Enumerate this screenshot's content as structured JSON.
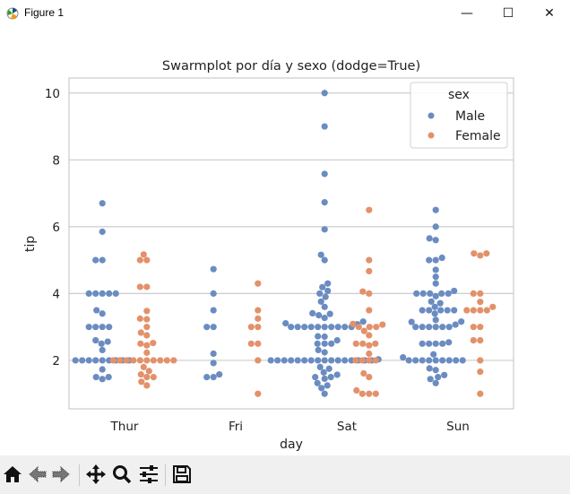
{
  "window": {
    "title": "Figure 1",
    "minimize": "—",
    "maximize": "☐",
    "close": "✕"
  },
  "toolbar": {
    "icons": [
      "home-icon",
      "back-icon",
      "forward-icon",
      "pan-icon",
      "zoom-icon",
      "configure-subplots-icon",
      "save-icon"
    ]
  },
  "chart_data": {
    "type": "scatter",
    "subtype": "swarm",
    "title": "Swarmplot por día y sexo (dodge=True)",
    "xlabel": "day",
    "ylabel": "tip",
    "categories": [
      "Thur",
      "Fri",
      "Sat",
      "Sun"
    ],
    "y_ticks": [
      2,
      4,
      6,
      8,
      10
    ],
    "ylim": [
      0.55,
      10.45
    ],
    "grid": "horizontal",
    "legend": {
      "title": "sex",
      "placement": "top-right"
    },
    "series": [
      {
        "name": "Male",
        "color": "#4c72b0",
        "values": {
          "Thur": [
            1.44,
            1.5,
            1.5,
            1.73,
            2,
            2,
            2,
            2,
            2,
            2,
            2,
            2,
            2,
            2.31,
            2.5,
            2.56,
            2.6,
            3,
            3,
            3,
            3,
            3.4,
            3.5,
            4,
            4,
            4,
            4,
            4,
            5,
            5,
            5.85,
            6.7
          ],
          "Fri": [
            1.5,
            1.5,
            1.58,
            1.92,
            2.2,
            3,
            3,
            3.5,
            4,
            4.73
          ],
          "Sat": [
            1,
            1.17,
            1.25,
            1.32,
            1.45,
            1.5,
            1.5,
            1.57,
            1.64,
            1.75,
            1.8,
            2,
            2,
            2,
            2,
            2,
            2,
            2,
            2,
            2,
            2,
            2,
            2,
            2,
            2,
            2,
            2,
            2.03,
            2.24,
            2.31,
            2.5,
            2.5,
            2.5,
            2.6,
            2.71,
            2.72,
            3,
            3,
            3,
            3,
            3,
            3,
            3,
            3,
            3,
            3,
            3.08,
            3.11,
            3.16,
            3.27,
            3.35,
            3.39,
            3.41,
            3.6,
            3.76,
            3.9,
            4,
            4.08,
            4.19,
            4.3,
            5,
            5.16,
            5.92,
            6.73,
            7.58,
            9,
            10
          ],
          "Sun": [
            1.32,
            1.44,
            1.5,
            1.56,
            1.71,
            1.76,
            2,
            2,
            2,
            2,
            2,
            2,
            2,
            2,
            2,
            2.09,
            2.18,
            2.5,
            2.5,
            2.5,
            2.5,
            2.54,
            3,
            3,
            3,
            3,
            3,
            3,
            3.07,
            3.15,
            3.16,
            3.21,
            3.4,
            3.5,
            3.5,
            3.5,
            3.5,
            3.5,
            3.6,
            3.71,
            3.76,
            3.92,
            4,
            4,
            4,
            4,
            4,
            4.08,
            4.3,
            4.5,
            4.71,
            5,
            5,
            5.07,
            5.6,
            5.65,
            6,
            6.5
          ]
        }
      },
      {
        "name": "Female",
        "color": "#dd8452",
        "values": {
          "Thur": [
            1.25,
            1.36,
            1.5,
            1.5,
            1.58,
            1.68,
            1.8,
            2,
            2,
            2,
            2,
            2,
            2,
            2,
            2,
            2,
            2,
            2.23,
            2.45,
            2.5,
            2.52,
            2.75,
            2.83,
            3,
            3.23,
            3.25,
            3.48,
            4.2,
            4.2,
            5,
            5,
            5.17
          ],
          "Fri": [
            1,
            2,
            2.5,
            2.5,
            3,
            3,
            3.25,
            3.5,
            4.3
          ],
          "Sat": [
            1,
            1,
            1,
            1.1,
            1.5,
            1.61,
            2,
            2,
            2,
            2,
            2.2,
            2.45,
            2.5,
            2.5,
            2.5,
            2.75,
            2.88,
            3,
            3,
            3,
            3.07,
            3.09,
            3.5,
            4,
            4.06,
            4.67,
            5,
            6.5
          ],
          "Sun": [
            1,
            1.66,
            2,
            2.6,
            2.6,
            3,
            3,
            3.5,
            3.5,
            3.5,
            3.5,
            3.6,
            3.75,
            4,
            4,
            5.14,
            5.2,
            5.2
          ]
        }
      }
    ]
  }
}
